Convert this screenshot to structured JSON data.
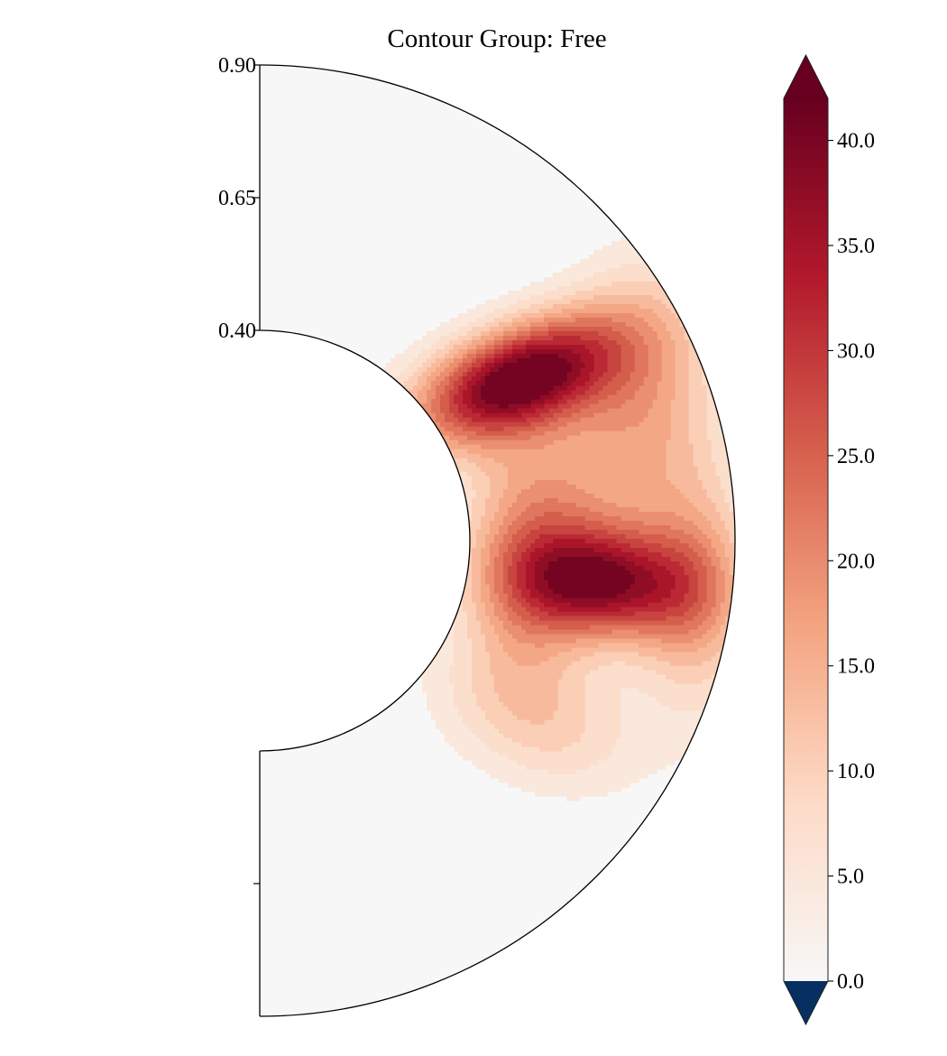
{
  "chart_data": {
    "type": "heatmap",
    "projection": "polar half-annulus (meridional plane)",
    "title": "Contour Group: Free",
    "radial_axis": {
      "range": [
        0.4,
        0.9
      ],
      "tick_values": [
        0.9,
        0.65,
        0.4
      ],
      "tick_labels": [
        "0.90",
        "0.65",
        "0.40"
      ],
      "lower_unlabeled_tick": 0.65
    },
    "colorbar": {
      "colormap": "RdBu_r",
      "range": [
        0.0,
        42.0
      ],
      "tick_values": [
        0,
        5,
        10,
        15,
        20,
        25,
        30,
        35,
        40
      ],
      "tick_labels": [
        "0.0",
        "5.0",
        "10.0",
        "15.0",
        "20.0",
        "25.0",
        "30.0",
        "35.0",
        "40.0"
      ],
      "extend": "both",
      "over_color": "#67001f",
      "under_color": "#053061"
    },
    "background_value": 0.0,
    "features": [
      {
        "name": "upper lobe",
        "polar_angle_deg": 58,
        "radius": 0.58,
        "peak_value": 42
      },
      {
        "name": "lower lobe",
        "polar_angle_deg": 96,
        "radius": 0.63,
        "peak_value": 37
      },
      {
        "name": "southern tail",
        "polar_angle_deg": 122,
        "radius": 0.6,
        "peak_value": 9
      }
    ],
    "contour_levels": [
      0,
      3,
      6,
      9,
      12,
      15,
      18,
      21,
      24,
      27,
      30,
      33,
      36,
      39,
      42
    ]
  }
}
